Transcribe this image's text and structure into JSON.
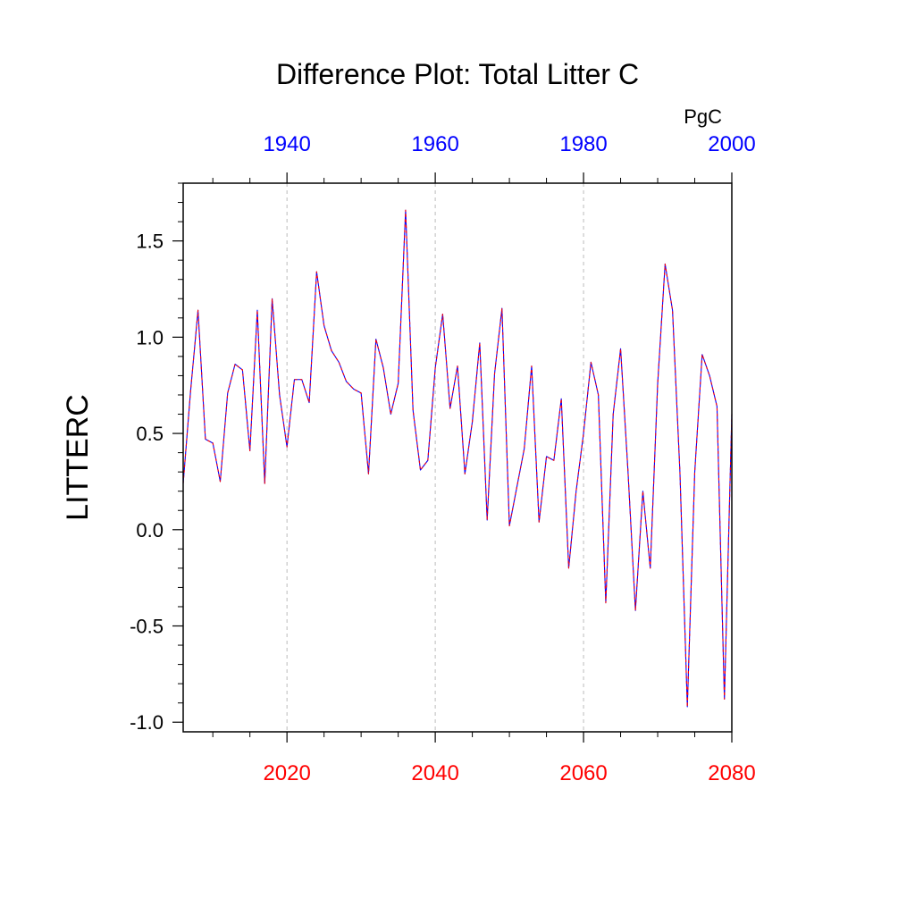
{
  "chart_data": {
    "type": "line",
    "title": "Difference Plot: Total Litter C",
    "ylabel": "LITTERC",
    "units": "PgC",
    "grid": "vertical dashed at bottom-axis major ticks",
    "xlim": [
      2006,
      2080
    ],
    "ylim": [
      -1.05,
      1.8
    ],
    "y_ticks": [
      "1.5",
      "1.0",
      "0.5",
      "0.0",
      "-0.5",
      "-1.0"
    ],
    "y_tick_values": [
      1.5,
      1.0,
      0.5,
      0.0,
      -0.5,
      -1.0
    ],
    "y_minor_step": 0.1,
    "bottom_axis": {
      "color": "#ff0000",
      "ticks": [
        "2020",
        "2040",
        "2060",
        "2080"
      ],
      "tick_values": [
        2020,
        2040,
        2060,
        2080
      ],
      "minor_step": 5
    },
    "top_axis": {
      "color": "#0000ff",
      "offset_years": 80,
      "ticks": [
        "1940",
        "1960",
        "1980",
        "2000"
      ],
      "tick_values": [
        1940,
        1960,
        1980,
        2000
      ],
      "minor_step": 5
    },
    "x": [
      2006,
      2007,
      2008,
      2009,
      2010,
      2011,
      2012,
      2013,
      2014,
      2015,
      2016,
      2017,
      2018,
      2019,
      2020,
      2021,
      2022,
      2023,
      2024,
      2025,
      2026,
      2027,
      2028,
      2029,
      2030,
      2031,
      2032,
      2033,
      2034,
      2035,
      2036,
      2037,
      2038,
      2039,
      2040,
      2041,
      2042,
      2043,
      2044,
      2045,
      2046,
      2047,
      2048,
      2049,
      2050,
      2051,
      2052,
      2053,
      2054,
      2055,
      2056,
      2057,
      2058,
      2059,
      2060,
      2061,
      2062,
      2063,
      2064,
      2065,
      2066,
      2067,
      2068,
      2069,
      2070,
      2071,
      2072,
      2073,
      2074,
      2075,
      2076,
      2077,
      2078,
      2079,
      2080
    ],
    "series": [
      {
        "color": "#0000ff",
        "values": [
          0.24,
          0.72,
          1.14,
          0.47,
          0.45,
          0.25,
          0.71,
          0.86,
          0.83,
          0.41,
          1.14,
          0.24,
          1.2,
          0.7,
          0.43,
          0.78,
          0.78,
          0.66,
          1.34,
          1.06,
          0.93,
          0.87,
          0.77,
          0.73,
          0.71,
          0.29,
          0.99,
          0.84,
          0.6,
          0.76,
          1.66,
          0.62,
          0.31,
          0.36,
          0.84,
          1.12,
          0.63,
          0.85,
          0.29,
          0.56,
          0.97,
          0.05,
          0.81,
          1.15,
          0.02,
          0.22,
          0.42,
          0.85,
          0.04,
          0.38,
          0.36,
          0.68,
          -0.2,
          0.2,
          0.5,
          0.87,
          0.7,
          -0.38,
          0.6,
          0.94,
          0.3,
          -0.42,
          0.2,
          -0.2,
          0.76,
          1.38,
          1.14,
          0.3,
          -0.92,
          0.3,
          0.91,
          0.8,
          0.64,
          -0.88,
          0.6
        ]
      },
      {
        "color": "#ff0000",
        "dashed": true,
        "values": [
          0.24,
          0.72,
          1.14,
          0.47,
          0.45,
          0.25,
          0.71,
          0.86,
          0.83,
          0.41,
          1.14,
          0.24,
          1.2,
          0.7,
          0.43,
          0.78,
          0.78,
          0.66,
          1.34,
          1.06,
          0.93,
          0.87,
          0.77,
          0.73,
          0.71,
          0.29,
          0.99,
          0.84,
          0.6,
          0.76,
          1.66,
          0.62,
          0.31,
          0.36,
          0.84,
          1.12,
          0.63,
          0.85,
          0.29,
          0.56,
          0.97,
          0.05,
          0.81,
          1.15,
          0.02,
          0.22,
          0.42,
          0.85,
          0.04,
          0.38,
          0.36,
          0.68,
          -0.2,
          0.2,
          0.5,
          0.87,
          0.7,
          -0.38,
          0.6,
          0.94,
          0.3,
          -0.42,
          0.2,
          -0.2,
          0.76,
          1.38,
          1.14,
          0.3,
          -0.92,
          0.3,
          0.91,
          0.8,
          0.64,
          -0.88,
          0.6
        ]
      }
    ]
  }
}
